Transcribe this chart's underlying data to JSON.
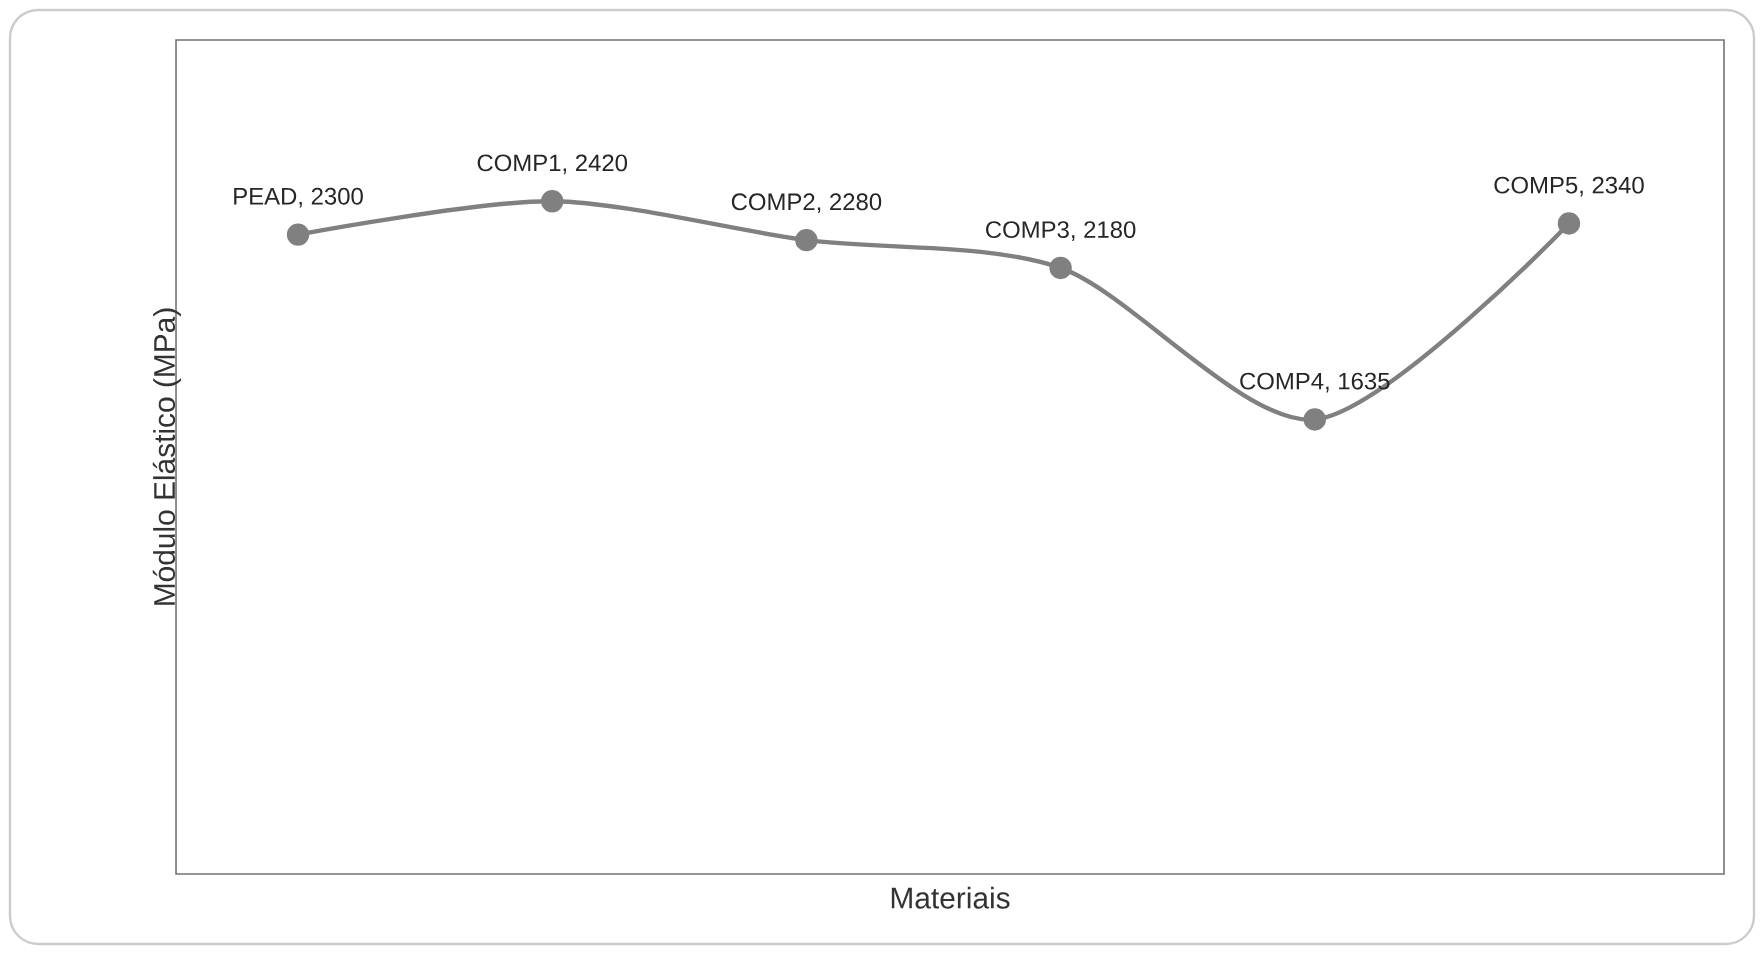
{
  "chart_data": {
    "type": "line",
    "xlabel": "Materiais",
    "ylabel": "Módulo Elástico (MPa)",
    "categories": [
      null,
      null,
      null,
      null,
      null,
      null
    ],
    "values": [
      2300,
      2420,
      2280,
      2180,
      1635,
      2340
    ],
    "value_labels": [
      "PEAD, 2300",
      "COMP1, 2420",
      "COMP2, 2280",
      "COMP3, 2180",
      "COMP4, 1635",
      "COMP5, 2340"
    ],
    "color": "#808080",
    "marker": "circle",
    "line_style": "solid",
    "ylim": [
      0,
      3000
    ]
  }
}
